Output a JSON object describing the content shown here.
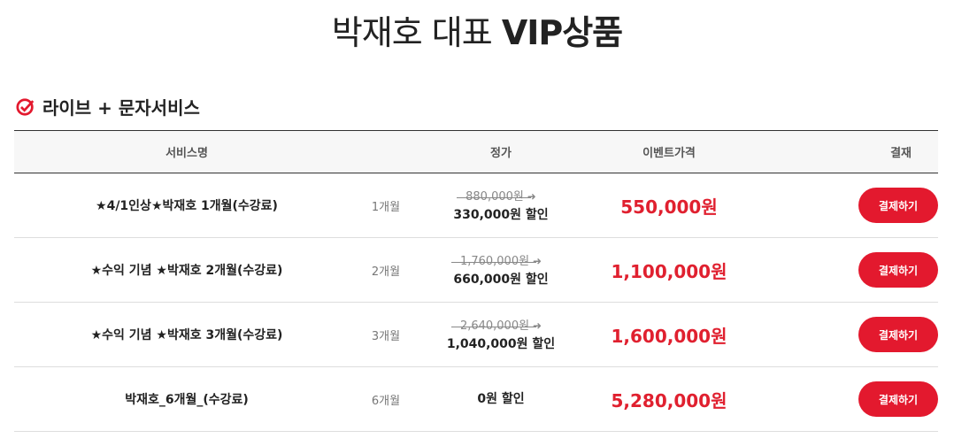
{
  "page": {
    "title_light": "박재호 대표",
    "title_bold": "VIP상품"
  },
  "section": {
    "title": "라이브 + 문자서비스",
    "accent": "#e3192e"
  },
  "table": {
    "headers": [
      "서비스명",
      "",
      "정가",
      "이벤트가격",
      "결재"
    ],
    "rows": [
      {
        "name": "★4/1인상★박재호 1개월(수강료)",
        "period": "1개월",
        "list_price": "880,000원",
        "discount": "330,000원 할인",
        "event_price": "550,000원",
        "button": "결제하기"
      },
      {
        "name": "★수익 기념 ★박재호 2개월(수강료)",
        "period": "2개월",
        "list_price": "1,760,000원",
        "discount": "660,000원 할인",
        "event_price": "1,100,000원",
        "button": "결제하기"
      },
      {
        "name": "★수익 기념 ★박재호 3개월(수강료)",
        "period": "3개월",
        "list_price": "2,640,000원",
        "discount": "1,040,000원 할인",
        "event_price": "1,600,000원",
        "button": "결제하기"
      },
      {
        "name": "박재호_6개월_(수강료)",
        "period": "6개월",
        "list_price": null,
        "discount": "0원 할인",
        "event_price": "5,280,000원",
        "button": "결제하기"
      }
    ]
  }
}
